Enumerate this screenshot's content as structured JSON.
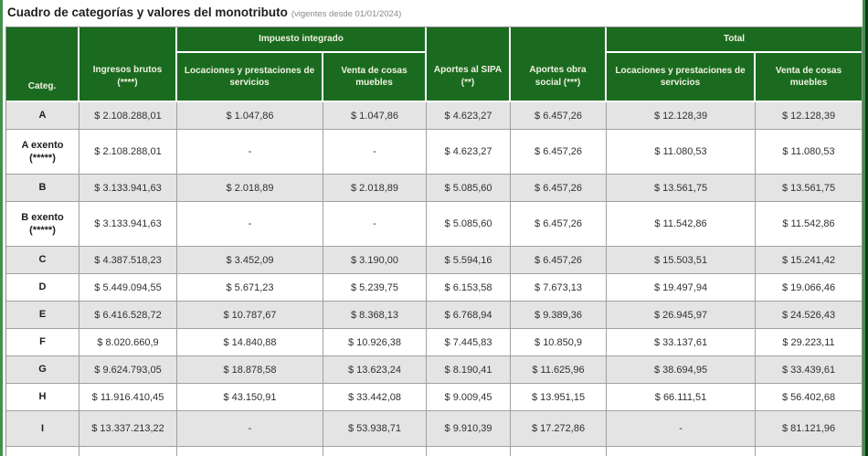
{
  "page": {
    "title": "Cuadro de categorías y valores del monotributo",
    "subtitle": "(vigentes desde 01/01/2024)"
  },
  "colors": {
    "header_green": "#1a6b1f",
    "header_text": "#f2f2e2",
    "row_stripe_gray": "#e4e4e4",
    "cell_border_gray": "#a0a0a0",
    "frame_green": "#44904a",
    "frame_dark_edge": "#14381a"
  },
  "table": {
    "headers": {
      "categ": "Categ.",
      "ingresos": [
        "Ingresos brutos",
        "(****)"
      ],
      "grupo_impuesto": "Impuesto integrado",
      "servicios": [
        "Locaciones y prestaciones de",
        "servicios"
      ],
      "muebles": [
        "Venta de cosas",
        "muebles"
      ],
      "sipa": [
        "Aportes al SIPA",
        "(**)"
      ],
      "obra_social": [
        "Aportes obra",
        "social (***)"
      ],
      "grupo_total": "Total"
    },
    "rows": [
      {
        "label": [
          "A"
        ],
        "values": [
          "$ 2.108.288,01",
          "$ 1.047,86",
          "$ 1.047,86",
          "$ 4.623,27",
          "$ 6.457,26",
          "$ 12.128,39",
          "$ 12.128,39"
        ]
      },
      {
        "label": [
          "A exento",
          "(*****)"
        ],
        "values": [
          "$ 2.108.288,01",
          "-",
          "-",
          "$ 4.623,27",
          "$ 6.457,26",
          "$ 11.080,53",
          "$ 11.080,53"
        ]
      },
      {
        "label": [
          "B"
        ],
        "values": [
          "$ 3.133.941,63",
          "$ 2.018,89",
          "$ 2.018,89",
          "$ 5.085,60",
          "$ 6.457,26",
          "$ 13.561,75",
          "$ 13.561,75"
        ]
      },
      {
        "label": [
          "B exento",
          "(*****)"
        ],
        "values": [
          "$ 3.133.941,63",
          "-",
          "-",
          "$ 5.085,60",
          "$ 6.457,26",
          "$ 11.542,86",
          "$ 11.542,86"
        ]
      },
      {
        "label": [
          "C"
        ],
        "values": [
          "$ 4.387.518,23",
          "$ 3.452,09",
          "$ 3.190,00",
          "$ 5.594,16",
          "$ 6.457,26",
          "$ 15.503,51",
          "$ 15.241,42"
        ]
      },
      {
        "label": [
          "D"
        ],
        "values": [
          "$ 5.449.094,55",
          "$ 5.671,23",
          "$ 5.239,75",
          "$ 6.153,58",
          "$ 7.673,13",
          "$ 19.497,94",
          "$ 19.066,46"
        ]
      },
      {
        "label": [
          "E"
        ],
        "values": [
          "$ 6.416.528,72",
          "$ 10.787,67",
          "$ 8.368,13",
          "$ 6.768,94",
          "$ 9.389,36",
          "$ 26.945,97",
          "$ 24.526,43"
        ]
      },
      {
        "label": [
          "F"
        ],
        "values": [
          "$ 8.020.660,9",
          "$ 14.840,88",
          "$ 10.926,38",
          "$ 7.445,83",
          "$ 10.850,9",
          "$ 33.137,61",
          "$ 29.223,11"
        ]
      },
      {
        "label": [
          "G"
        ],
        "values": [
          "$ 9.624.793,05",
          "$ 18.878,58",
          "$ 13.623,24",
          "$ 8.190,41",
          "$ 11.625,96",
          "$ 38.694,95",
          "$ 33.439,61"
        ]
      },
      {
        "label": [
          "H"
        ],
        "values": [
          "$ 11.916.410,45",
          "$ 43.150,91",
          "$ 33.442,08",
          "$ 9.009,45",
          "$ 13.951,15",
          "$ 66.111,51",
          "$ 56.402,68"
        ]
      },
      {
        "label": [
          "I"
        ],
        "values": [
          "$ 13.337.213,22",
          "-",
          "$ 53.938,71",
          "$ 9.910,39",
          "$ 17.272,86",
          "-",
          "$ 81.121,96"
        ]
      }
    ]
  }
}
